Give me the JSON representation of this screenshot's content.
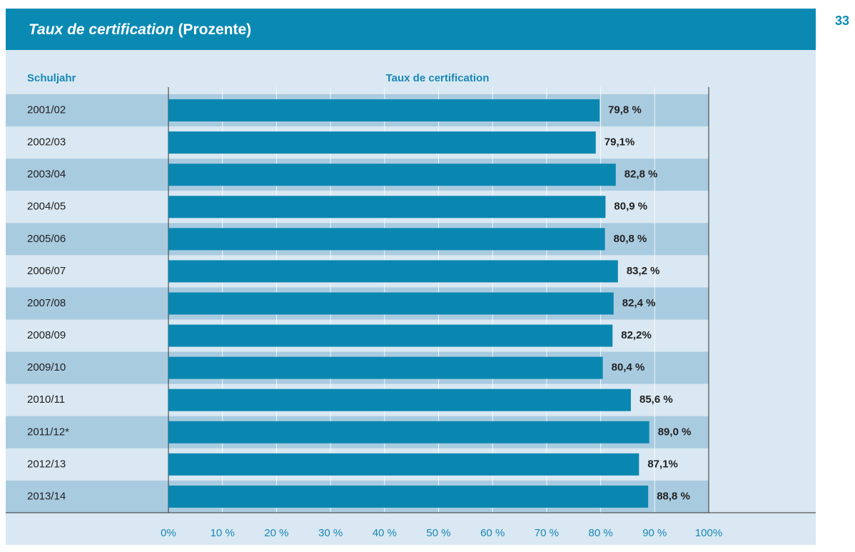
{
  "page_number": "33",
  "chart_data": {
    "type": "barh",
    "title": "Taux de certification",
    "title_suffix": "(Prozente)",
    "category_header": "Schuljahr",
    "value_header": "Taux de certification",
    "categories": [
      "2001/02",
      "2002/03",
      "2003/04",
      "2004/05",
      "2005/06",
      "2006/07",
      "2007/08",
      "2008/09",
      "2009/10",
      "2010/11",
      "2011/12*",
      "2012/13",
      "2013/14"
    ],
    "values": [
      79.8,
      79.1,
      82.8,
      80.9,
      80.8,
      83.2,
      82.4,
      82.2,
      80.4,
      85.6,
      89.0,
      87.1,
      88.8
    ],
    "value_labels": [
      "79,8 %",
      "79,1%",
      "82,8 %",
      "80,9 %",
      "80,8 %",
      "83,2 %",
      "82,4 %",
      "82,2%",
      "80,4 %",
      "85,6 %",
      "89,0 %",
      "87,1%",
      "88,8 %"
    ],
    "color": "#0a87b1",
    "xlim": [
      0,
      100
    ],
    "xticks": [
      {
        "value": 0,
        "label": "0%"
      },
      {
        "value": 10,
        "label": "10 %"
      },
      {
        "value": 20,
        "label": "20 %"
      },
      {
        "value": 30,
        "label": "30 %"
      },
      {
        "value": 40,
        "label": "40 %"
      },
      {
        "value": 50,
        "label": "50 %"
      },
      {
        "value": 60,
        "label": "60 %"
      },
      {
        "value": 70,
        "label": "70 %"
      },
      {
        "value": 80,
        "label": "80 %"
      },
      {
        "value": 90,
        "label": "90 %"
      },
      {
        "value": 100,
        "label": "100%"
      }
    ],
    "grid": true
  }
}
